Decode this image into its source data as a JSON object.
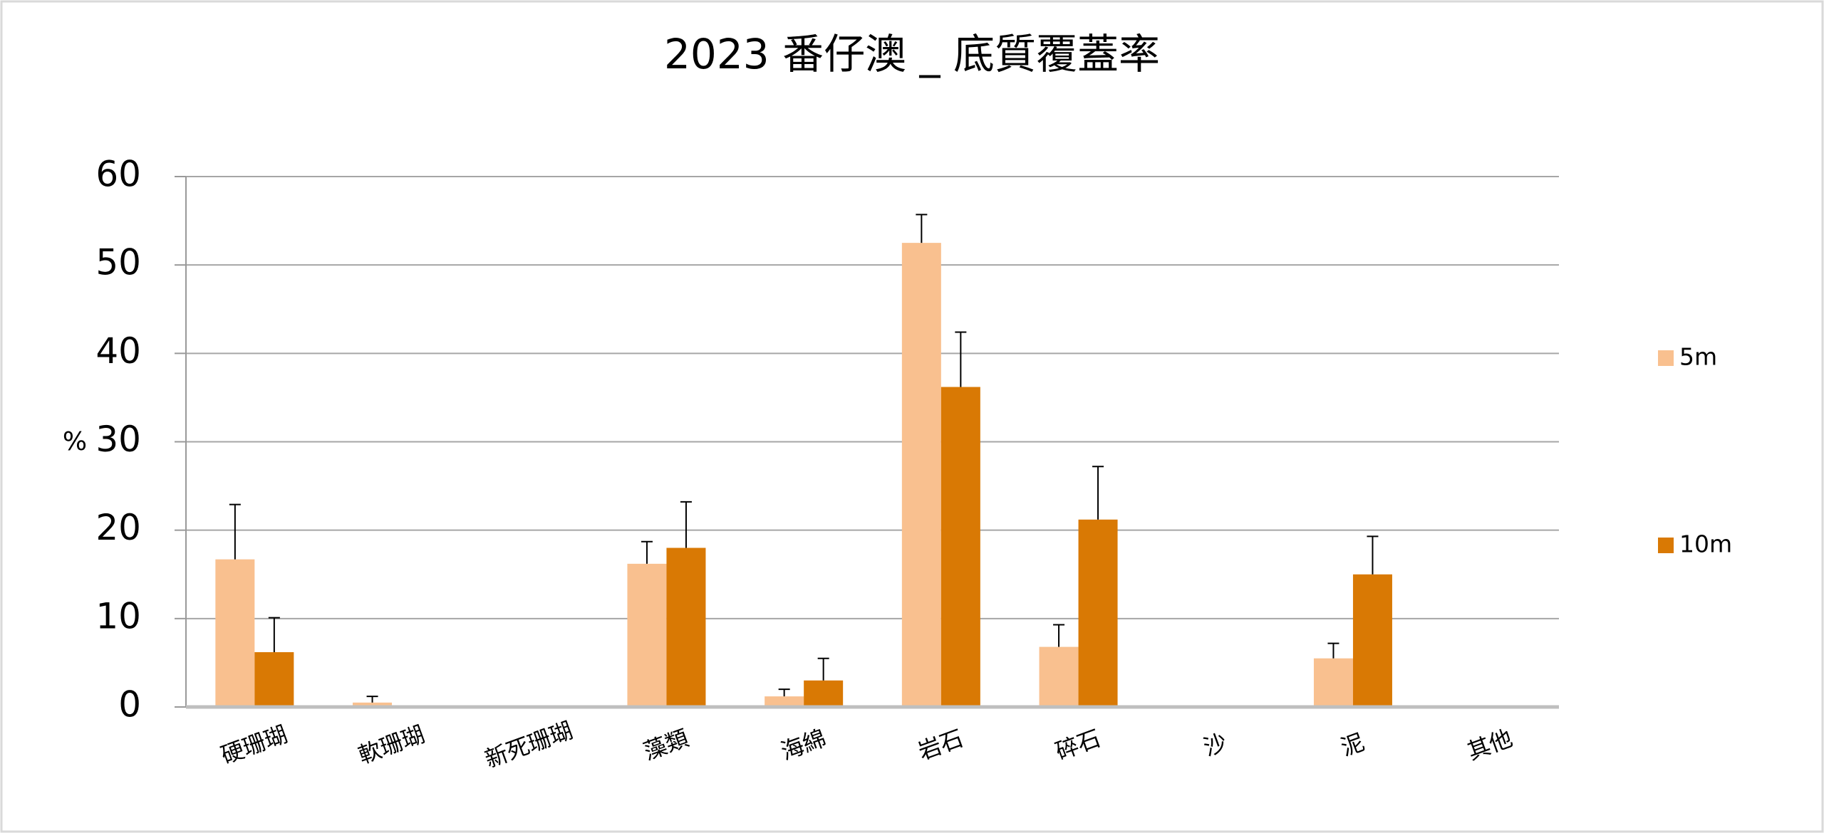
{
  "chart_data": {
    "type": "bar",
    "title": "2023 番仔澳 _ 底質覆蓋率",
    "y_label": "%",
    "categories": [
      "硬珊瑚",
      "軟珊瑚",
      "新死珊瑚",
      "藻類",
      "海綿",
      "岩石",
      "碎石",
      "沙",
      "泥",
      "其他"
    ],
    "series": [
      {
        "name": "5m",
        "color": "#f9c08f",
        "values": [
          16.7,
          0.5,
          0,
          16.2,
          1.2,
          52.5,
          6.8,
          0,
          5.5,
          0
        ],
        "errors": [
          6.2,
          0.7,
          0,
          2.5,
          0.8,
          3.2,
          2.5,
          0,
          1.7,
          0
        ]
      },
      {
        "name": "10m",
        "color": "#d97904",
        "values": [
          6.2,
          0,
          0,
          18.0,
          3.0,
          36.2,
          21.2,
          0,
          15.0,
          0
        ],
        "errors": [
          3.9,
          0,
          0,
          5.2,
          2.5,
          6.2,
          6.0,
          0,
          4.3,
          0
        ]
      }
    ],
    "ylim": [
      0,
      60
    ],
    "yticks": [
      0,
      10,
      20,
      30,
      40,
      50,
      60
    ],
    "grid": true,
    "legend": "right"
  }
}
